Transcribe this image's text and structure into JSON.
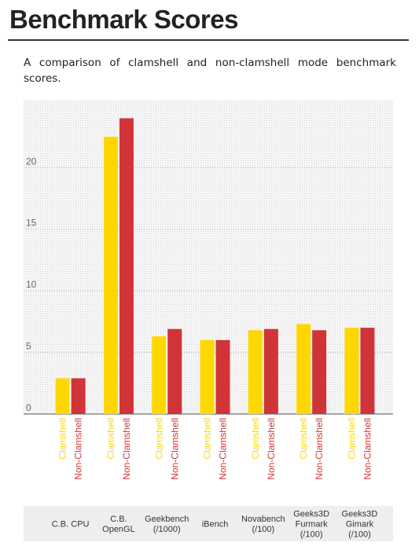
{
  "page": {
    "title": "Benchmark Scores",
    "subtitle": "A comparison of clamshell and non-clamshell mode benchmark scores."
  },
  "chart_data": {
    "type": "bar",
    "categories": [
      [
        "C.B. CPU"
      ],
      [
        "C.B.",
        "OpenGL"
      ],
      [
        "Geekbench",
        "(/1000)"
      ],
      [
        "iBench"
      ],
      [
        "Novabench",
        "(/100)"
      ],
      [
        "Geeks3D",
        "Furmark",
        "(/100)"
      ],
      [
        "Geeks3D",
        "Gimark",
        "(/100)"
      ]
    ],
    "series": [
      {
        "name": "Clamshell",
        "color": "#ffd700",
        "values": [
          2.9,
          22.5,
          6.3,
          6.0,
          6.8,
          7.3,
          7.0
        ]
      },
      {
        "name": "Non-Clamshell",
        "color": "#d13438",
        "values": [
          2.9,
          24.0,
          6.9,
          6.0,
          6.9,
          6.8,
          7.0
        ]
      }
    ],
    "ylim": [
      0,
      25.5
    ],
    "yticks": [
      0,
      5,
      10,
      15,
      20
    ],
    "grid": true,
    "legend": "bar labels",
    "colors": {
      "plot_background": "#f2f2f2",
      "category_strip": "#eeeeee"
    }
  }
}
